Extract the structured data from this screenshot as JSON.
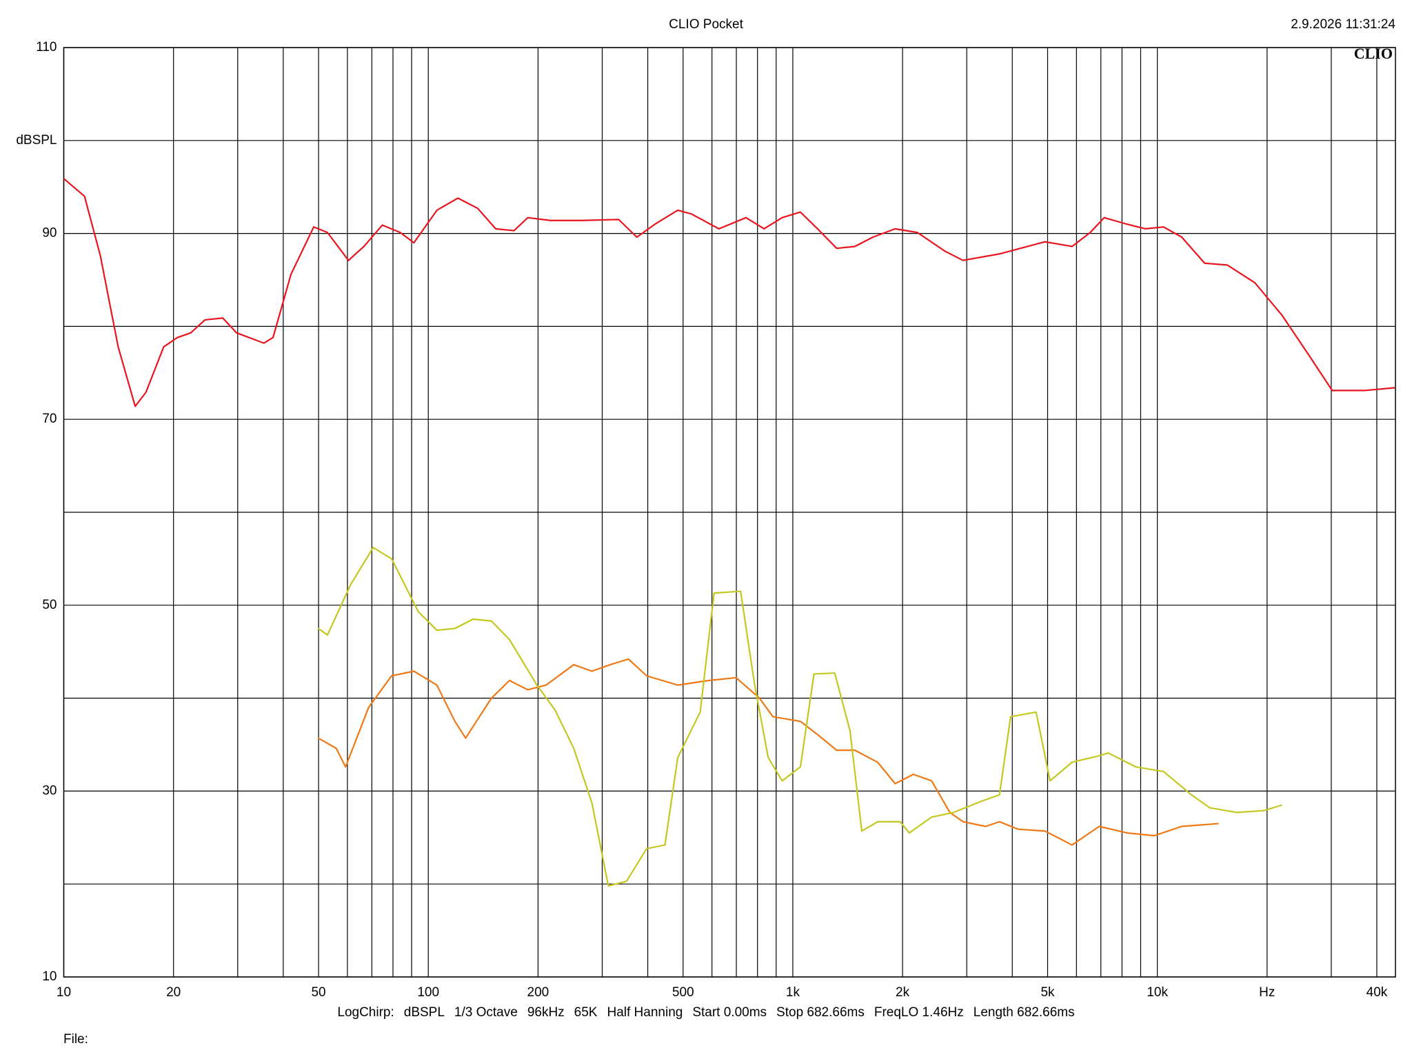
{
  "chart_data": {
    "type": "line",
    "title": "CLIO Pocket",
    "timestamp": "2.9.2026 11:31:24",
    "logo": "CLIO",
    "xscale": "log",
    "grid": true,
    "xlim": [
      10,
      45000
    ],
    "ylim": [
      10,
      110
    ],
    "xticks": [
      10,
      20,
      {
        "value": 30,
        "label": null
      },
      {
        "value": 40,
        "label": null
      },
      50,
      {
        "value": 60,
        "label": null
      },
      {
        "value": 70,
        "label": null
      },
      {
        "value": 80,
        "label": null
      },
      {
        "value": 90,
        "label": null
      },
      100,
      200,
      {
        "value": 300,
        "label": null
      },
      {
        "value": 400,
        "label": null
      },
      500,
      {
        "value": 600,
        "label": null
      },
      {
        "value": 700,
        "label": null
      },
      {
        "value": 800,
        "label": null
      },
      {
        "value": 900,
        "label": null
      },
      {
        "value": 1000,
        "label": "1k"
      },
      {
        "value": 2000,
        "label": "2k"
      },
      {
        "value": 3000,
        "label": null
      },
      {
        "value": 4000,
        "label": null
      },
      {
        "value": 5000,
        "label": "5k"
      },
      {
        "value": 6000,
        "label": null
      },
      {
        "value": 7000,
        "label": null
      },
      {
        "value": 8000,
        "label": null
      },
      {
        "value": 9000,
        "label": null
      },
      {
        "value": 10000,
        "label": "10k"
      },
      {
        "value": 20000,
        "label": "Hz"
      },
      {
        "value": 30000,
        "label": null
      },
      {
        "value": 40000,
        "label": "40k"
      }
    ],
    "yticks": [
      10,
      {
        "value": 20,
        "label": null
      },
      30,
      {
        "value": 40,
        "label": null
      },
      50,
      {
        "value": 60,
        "label": null
      },
      70,
      {
        "value": 80,
        "label": null
      },
      90,
      {
        "value": 100,
        "label": "dBSPL"
      },
      110
    ],
    "series": [
      {
        "color": "#e8141e",
        "x": [
          10,
          11.4,
          12.6,
          14.1,
          15.7,
          16.8,
          18.8,
          20.5,
          22.3,
          24.4,
          27.3,
          29.8,
          35.4,
          37.5,
          42,
          48.5,
          52.9,
          60.4,
          66.6,
          74.8,
          83.8,
          91.3,
          105.6,
          120.6,
          136.6,
          153.1,
          171.8,
          187.5,
          216.4,
          264.7,
          332.9,
          373.3,
          418.7,
          483.4,
          527,
          627,
          744,
          834,
          935,
          1049,
          1176,
          1319,
          1479,
          1658,
          1909,
          2197,
          2612,
          2931,
          3690,
          4917,
          5834,
          6545,
          7150,
          8252,
          9264,
          10400,
          11670,
          13480,
          15560,
          18510,
          21980,
          26150,
          30180,
          36970,
          44820
        ],
        "values": [
          95.9,
          94.0,
          87.6,
          77.8,
          71.4,
          72.9,
          77.8,
          78.8,
          79.3,
          80.7,
          80.9,
          79.3,
          78.2,
          78.8,
          85.6,
          90.7,
          90.1,
          87.1,
          88.6,
          90.9,
          90.1,
          89.0,
          92.5,
          93.8,
          92.7,
          90.5,
          90.3,
          91.7,
          91.4,
          91.4,
          91.5,
          89.6,
          91.0,
          92.5,
          92.1,
          90.5,
          91.7,
          90.5,
          91.7,
          92.3,
          90.4,
          88.4,
          88.6,
          89.6,
          90.5,
          90.1,
          88.1,
          87.1,
          87.8,
          89.1,
          88.6,
          90.1,
          91.7,
          91.0,
          90.5,
          90.7,
          89.6,
          86.8,
          86.6,
          84.7,
          81.2,
          76.8,
          73.1,
          73.1,
          73.4
        ]
      },
      {
        "color": "#f07814",
        "x": [
          49.9,
          55.9,
          59.3,
          68.6,
          79.3,
          91.3,
          105.6,
          118.3,
          126.6,
          149,
          167,
          187.5,
          210.4,
          250.6,
          281.2,
          315.5,
          354.0,
          397.2,
          483.4,
          588,
          699,
          810,
          882,
          1049,
          1176,
          1319,
          1479,
          1709,
          1909,
          2141,
          2403,
          2697,
          2931,
          3380,
          3690,
          4150,
          4917,
          5834,
          6928,
          8252,
          9810,
          11670,
          14730
        ],
        "values": [
          35.7,
          34.6,
          32.6,
          39.0,
          42.4,
          42.9,
          41.4,
          37.5,
          35.7,
          40.0,
          41.9,
          40.9,
          41.4,
          43.6,
          42.9,
          43.6,
          44.2,
          42.4,
          41.4,
          41.9,
          42.2,
          40.0,
          38.0,
          37.5,
          36.0,
          34.4,
          34.4,
          33.1,
          30.8,
          31.8,
          31.1,
          27.7,
          26.7,
          26.2,
          26.7,
          25.9,
          25.7,
          24.2,
          26.2,
          25.5,
          25.2,
          26.2,
          26.5
        ]
      },
      {
        "color": "#c3c81e",
        "x": [
          49.9,
          52.9,
          61.2,
          70.6,
          79.3,
          93.9,
          105.6,
          118.3,
          132.8,
          149,
          167,
          198.6,
          222.9,
          250.6,
          281.2,
          311.8,
          349.8,
          397.2,
          445.9,
          483.4,
          557,
          608,
          719,
          786,
          856,
          935,
          1049,
          1143,
          1303,
          1435,
          1546,
          1709,
          1970,
          2087,
          2403,
          2759,
          3287,
          3690,
          3958,
          4650,
          5077,
          5834,
          6928,
          7333,
          8733,
          10400,
          12400,
          13930,
          16540,
          19640,
          21980
        ],
        "values": [
          47.5,
          46.8,
          52.2,
          56.2,
          55.0,
          49.3,
          47.3,
          47.5,
          48.5,
          48.3,
          46.3,
          41.4,
          38.7,
          34.6,
          28.7,
          19.8,
          20.3,
          23.8,
          24.2,
          33.6,
          38.5,
          51.3,
          51.5,
          41.4,
          33.6,
          31.1,
          32.6,
          42.6,
          42.7,
          36.5,
          25.7,
          26.7,
          26.7,
          25.5,
          27.2,
          27.7,
          28.9,
          29.6,
          38.0,
          38.5,
          31.1,
          33.1,
          33.8,
          34.1,
          32.6,
          32.1,
          29.6,
          28.2,
          27.7,
          27.9,
          28.5
        ]
      }
    ],
    "settings": [
      "LogChirp:",
      "dBSPL",
      "1/3 Octave",
      "96kHz",
      "65K",
      "Half Hanning",
      "Start 0.00ms",
      "Stop 682.66ms",
      "FreqLO 1.46Hz",
      "Length 682.66ms"
    ],
    "file_label": "File:"
  }
}
